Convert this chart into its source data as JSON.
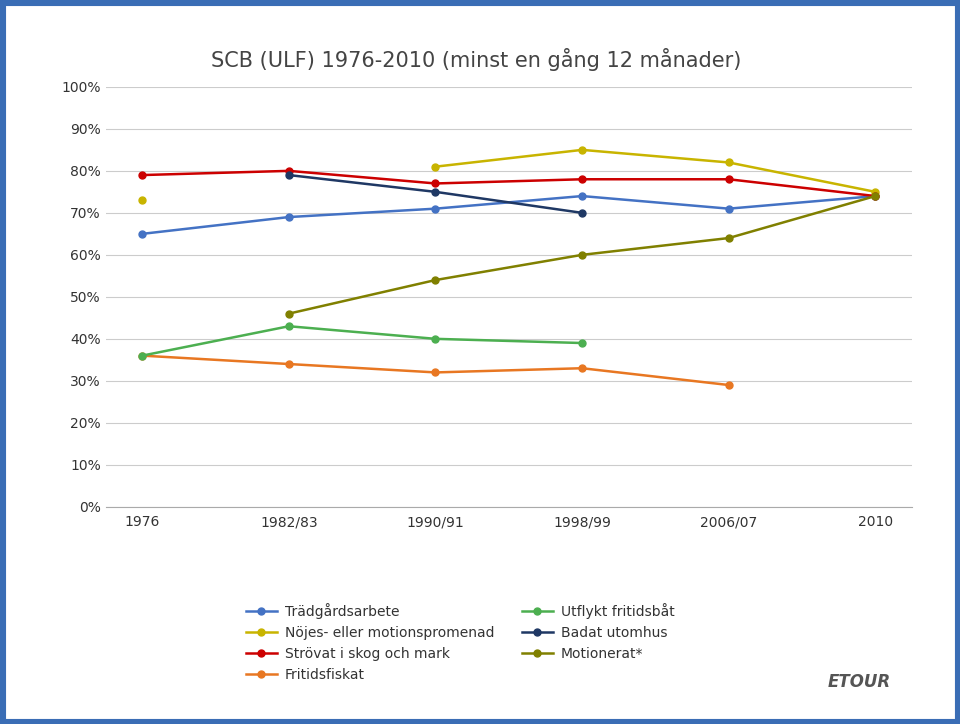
{
  "title": "SCB (ULF) 1976-2010 (minst en gång 12 månader)",
  "x_labels": [
    "1976",
    "1982/83",
    "1990/91",
    "1998/99",
    "2006/07",
    "2010"
  ],
  "x_positions": [
    0,
    1,
    2,
    3,
    4,
    5
  ],
  "series": [
    {
      "name": "Trädgårdsarbete",
      "color": "#4472C4",
      "values": [
        65,
        69,
        71,
        74,
        71,
        74
      ],
      "marker": "o"
    },
    {
      "name": "Nöjes- eller motionspromenad",
      "color": "#C8B400",
      "values": [
        73,
        null,
        81,
        85,
        82,
        75
      ],
      "marker": "o"
    },
    {
      "name": "Strövat i skog och mark",
      "color": "#CC0000",
      "values": [
        79,
        80,
        77,
        78,
        78,
        74
      ],
      "marker": "o"
    },
    {
      "name": "Fritidsfiskat",
      "color": "#E87722",
      "values": [
        36,
        34,
        32,
        33,
        29,
        null
      ],
      "marker": "o"
    },
    {
      "name": "Utflykt fritidsbåt",
      "color": "#4CAF50",
      "values": [
        36,
        43,
        40,
        39,
        null,
        null
      ],
      "marker": "o"
    },
    {
      "name": "Badat utomhus",
      "color": "#1F3864",
      "values": [
        null,
        79,
        75,
        70,
        null,
        null
      ],
      "marker": "o"
    },
    {
      "name": "Motionerat*",
      "color": "#808000",
      "values": [
        null,
        46,
        54,
        60,
        64,
        74
      ],
      "marker": "o"
    }
  ],
  "legend_order": [
    "Trädgårdsarbete",
    "Nöjes- eller motionspromenad",
    "Strövat i skog och mark",
    "Fritidsfiskat",
    "Utflykt fritidsbåt",
    "Badat utomhus",
    "Motionerat*"
  ],
  "ylim": [
    0,
    100
  ],
  "yticks": [
    0,
    10,
    20,
    30,
    40,
    50,
    60,
    70,
    80,
    90,
    100
  ],
  "ytick_labels": [
    "0%",
    "10%",
    "20%",
    "30%",
    "40%",
    "50%",
    "60%",
    "70%",
    "80%",
    "90%",
    "100%"
  ],
  "background_color": "#FFFFFF",
  "border_color": "#3A6DB5",
  "title_fontsize": 15,
  "tick_fontsize": 10,
  "legend_fontsize": 10
}
